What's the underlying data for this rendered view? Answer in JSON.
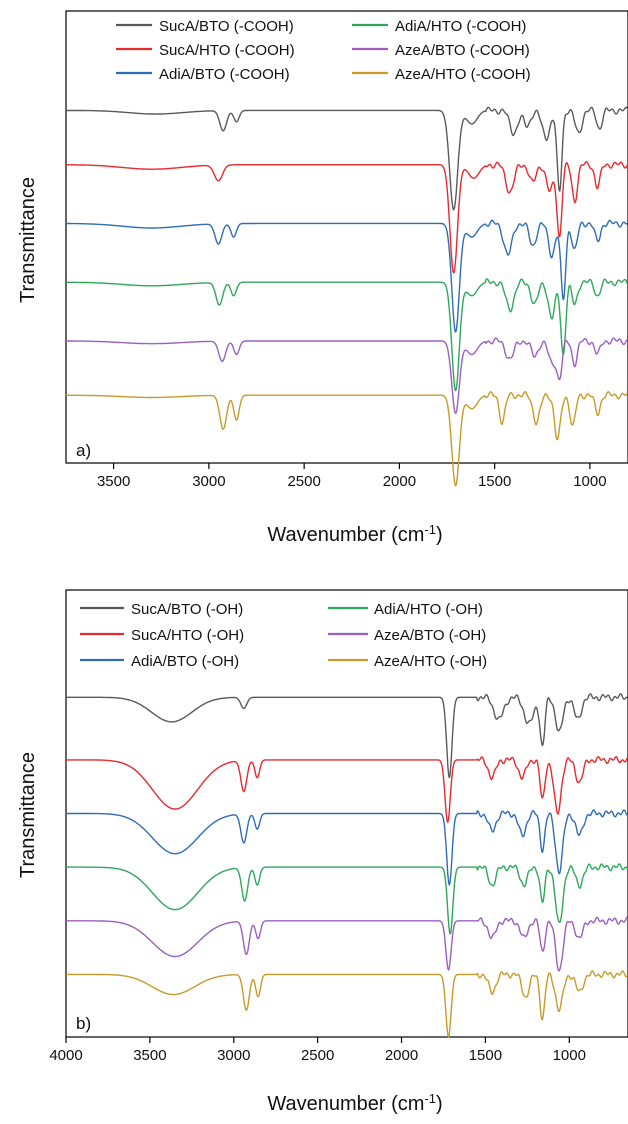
{
  "chart_data": [
    {
      "type": "line",
      "panel_label": "a)",
      "xlabel": "Wavenumber (cm",
      "xlabel_sup": "-1",
      "xlabel_end": ")",
      "ylabel": "Transmittance",
      "xlim": [
        3750,
        800
      ],
      "x_reversed": true,
      "xticks": [
        3500,
        3000,
        2500,
        2000,
        1500,
        1000
      ],
      "y_ticks_shown": false,
      "legend_position": "top, two columns",
      "series": [
        {
          "name": "SucA/BTO  (-COOH)",
          "color": "#5a5a5a",
          "baseline": 7.3,
          "features": [
            [
              3280,
              0.08,
              200
            ],
            [
              2925,
              0.45,
              25
            ],
            [
              2855,
              0.25,
              20
            ],
            [
              1715,
              2.2,
              30
            ],
            [
              1620,
              0.3,
              40
            ],
            [
              1400,
              0.5,
              30
            ],
            [
              1330,
              0.35,
              25
            ],
            [
              1230,
              0.6,
              30
            ],
            [
              1160,
              1.8,
              18
            ],
            [
              1060,
              0.5,
              25
            ],
            [
              950,
              0.4,
              20
            ]
          ]
        },
        {
          "name": "SucA/HTO  (-COOH)",
          "color": "#e8292e",
          "baseline": 6.1,
          "features": [
            [
              3300,
              0.1,
              220
            ],
            [
              2950,
              0.35,
              30
            ],
            [
              1715,
              2.4,
              28
            ],
            [
              1610,
              0.3,
              40
            ],
            [
              1420,
              0.6,
              30
            ],
            [
              1300,
              0.4,
              25
            ],
            [
              1210,
              0.6,
              25
            ],
            [
              1160,
              1.6,
              18
            ],
            [
              1080,
              0.8,
              20
            ],
            [
              960,
              0.5,
              20
            ]
          ]
        },
        {
          "name": "AdiA/BTO  (-COOH)",
          "color": "#2f6db5",
          "baseline": 4.8,
          "features": [
            [
              3300,
              0.1,
              220
            ],
            [
              2950,
              0.45,
              25
            ],
            [
              2870,
              0.3,
              20
            ],
            [
              1705,
              2.4,
              28
            ],
            [
              1620,
              0.3,
              40
            ],
            [
              1430,
              0.7,
              30
            ],
            [
              1300,
              0.5,
              25
            ],
            [
              1200,
              0.7,
              25
            ],
            [
              1140,
              1.7,
              18
            ],
            [
              1080,
              0.6,
              20
            ],
            [
              960,
              0.4,
              20
            ]
          ]
        },
        {
          "name": "AdiA/HTO  (-COOH)",
          "color": "#2ea85a",
          "baseline": 3.5,
          "features": [
            [
              3300,
              0.08,
              220
            ],
            [
              2945,
              0.5,
              25
            ],
            [
              2870,
              0.3,
              20
            ],
            [
              1705,
              2.4,
              28
            ],
            [
              1620,
              0.3,
              40
            ],
            [
              1420,
              0.6,
              30
            ],
            [
              1290,
              0.5,
              25
            ],
            [
              1200,
              0.8,
              25
            ],
            [
              1140,
              1.6,
              18
            ],
            [
              1080,
              0.5,
              20
            ],
            [
              960,
              0.3,
              20
            ]
          ]
        },
        {
          "name": "AzeA/BTO  (-COOH)",
          "color": "#9b5fc0",
          "baseline": 2.2,
          "features": [
            [
              3300,
              0.06,
              220
            ],
            [
              2930,
              0.45,
              25
            ],
            [
              2855,
              0.3,
              20
            ],
            [
              1705,
              1.6,
              28
            ],
            [
              1620,
              0.3,
              40
            ],
            [
              1420,
              0.4,
              30
            ],
            [
              1290,
              0.35,
              25
            ],
            [
              1200,
              0.5,
              25
            ],
            [
              1160,
              0.8,
              20
            ],
            [
              1080,
              0.5,
              20
            ],
            [
              960,
              0.3,
              20
            ]
          ]
        },
        {
          "name": "AzeA/HTO  (-COOH)",
          "color": "#c89a2a",
          "baseline": 1.0,
          "features": [
            [
              3300,
              0.05,
              220
            ],
            [
              2925,
              0.75,
              25
            ],
            [
              2855,
              0.55,
              20
            ],
            [
              1705,
              2.0,
              28
            ],
            [
              1620,
              0.3,
              40
            ],
            [
              1460,
              0.6,
              20
            ],
            [
              1280,
              0.6,
              25
            ],
            [
              1170,
              1.0,
              22
            ],
            [
              1090,
              0.7,
              20
            ],
            [
              960,
              0.4,
              20
            ]
          ]
        }
      ]
    },
    {
      "type": "line",
      "panel_label": "b)",
      "xlabel": "Wavenumber (cm",
      "xlabel_sup": "-1",
      "xlabel_end": ")",
      "ylabel": "Transmittance",
      "xlim": [
        4000,
        650
      ],
      "x_reversed": true,
      "xticks": [
        4000,
        3500,
        3000,
        2500,
        2000,
        1500,
        1000
      ],
      "y_ticks_shown": false,
      "legend_position": "top, two columns",
      "series": [
        {
          "name": "SucA/BTO (-OH)",
          "color": "#5a5a5a",
          "baseline": 7.6,
          "features": [
            [
              3370,
              0.55,
              170
            ],
            [
              2940,
              0.25,
              25
            ],
            [
              1715,
              1.8,
              22
            ],
            [
              1420,
              0.5,
              40
            ],
            [
              1240,
              0.6,
              40
            ],
            [
              1160,
              1.1,
              20
            ],
            [
              1060,
              0.8,
              30
            ],
            [
              950,
              0.5,
              30
            ]
          ]
        },
        {
          "name": "SucA/HTO (-OH)",
          "color": "#e8292e",
          "baseline": 6.2,
          "features": [
            [
              3350,
              1.1,
              190
            ],
            [
              2940,
              0.7,
              25
            ],
            [
              2860,
              0.4,
              20
            ],
            [
              1725,
              1.4,
              22
            ],
            [
              1460,
              0.4,
              30
            ],
            [
              1280,
              0.4,
              30
            ],
            [
              1160,
              0.9,
              20
            ],
            [
              1070,
              1.2,
              30
            ],
            [
              940,
              0.5,
              30
            ]
          ]
        },
        {
          "name": "AdiA/BTO  (-OH)",
          "color": "#2f6db5",
          "baseline": 5.0,
          "features": [
            [
              3350,
              0.9,
              190
            ],
            [
              2940,
              0.65,
              25
            ],
            [
              2860,
              0.35,
              20
            ],
            [
              1715,
              1.6,
              22
            ],
            [
              1460,
              0.4,
              30
            ],
            [
              1280,
              0.5,
              30
            ],
            [
              1160,
              0.8,
              20
            ],
            [
              1060,
              1.3,
              30
            ],
            [
              940,
              0.5,
              30
            ]
          ]
        },
        {
          "name": "AdiA/HTO  (-OH)",
          "color": "#2ea85a",
          "baseline": 3.8,
          "features": [
            [
              3350,
              0.95,
              190
            ],
            [
              2935,
              0.75,
              25
            ],
            [
              2860,
              0.4,
              20
            ],
            [
              1710,
              1.5,
              22
            ],
            [
              1460,
              0.4,
              30
            ],
            [
              1270,
              0.4,
              30
            ],
            [
              1160,
              0.8,
              20
            ],
            [
              1060,
              1.3,
              30
            ],
            [
              940,
              0.4,
              30
            ]
          ]
        },
        {
          "name": "AzeA/BTO (-OH)",
          "color": "#9b5fc0",
          "baseline": 2.6,
          "features": [
            [
              3350,
              0.8,
              190
            ],
            [
              2925,
              0.75,
              25
            ],
            [
              2855,
              0.4,
              20
            ],
            [
              1720,
              1.1,
              22
            ],
            [
              1460,
              0.4,
              30
            ],
            [
              1270,
              0.4,
              30
            ],
            [
              1160,
              0.7,
              20
            ],
            [
              1060,
              1.1,
              30
            ],
            [
              940,
              0.4,
              30
            ]
          ]
        },
        {
          "name": "AzeA/HTO (-OH)",
          "color": "#c89a2a",
          "baseline": 1.4,
          "features": [
            [
              3360,
              0.45,
              180
            ],
            [
              2925,
              0.8,
              25
            ],
            [
              2855,
              0.5,
              20
            ],
            [
              1720,
              1.4,
              22
            ],
            [
              1460,
              0.4,
              30
            ],
            [
              1260,
              0.5,
              30
            ],
            [
              1160,
              1.0,
              20
            ],
            [
              1060,
              0.8,
              30
            ],
            [
              940,
              0.4,
              30
            ]
          ]
        }
      ]
    }
  ]
}
